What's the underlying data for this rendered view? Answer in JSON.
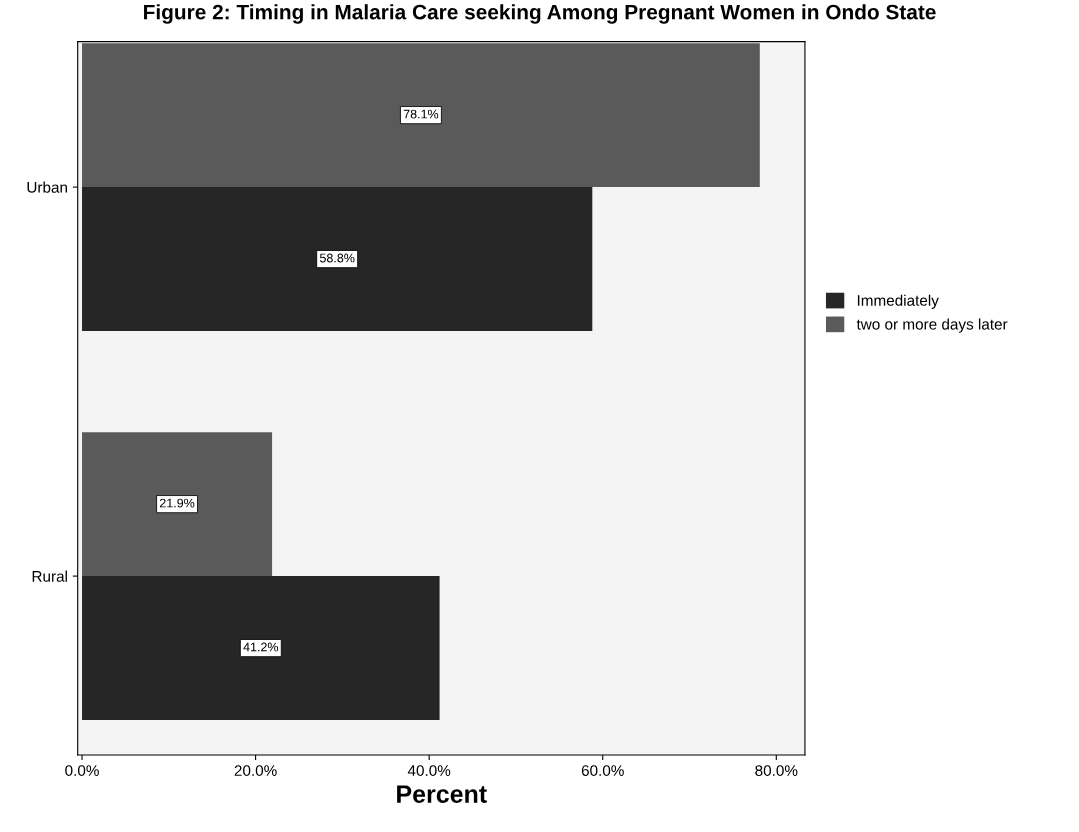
{
  "chart_data": {
    "type": "bar",
    "orientation": "horizontal",
    "title": "Figure 2: Timing in Malaria Care seeking Among Pregnant Women in Ondo State",
    "xlabel": "Percent",
    "categories": [
      "Urban",
      "Rural"
    ],
    "series": [
      {
        "name": "Immediately",
        "color": "#262626",
        "values": [
          58.8,
          41.2
        ],
        "value_labels": [
          "58.8%",
          "41.2%"
        ]
      },
      {
        "name": "two or more days later",
        "color": "#5a5a5a",
        "values": [
          78.1,
          21.9
        ],
        "value_labels": [
          "78.1%",
          "21.9%"
        ]
      }
    ],
    "xlim": [
      -0.5,
      83.3
    ],
    "xticks": [
      {
        "value": 0,
        "label": "0.0%"
      },
      {
        "value": 20,
        "label": "20.0%"
      },
      {
        "value": 40,
        "label": "40.0%"
      },
      {
        "value": 60,
        "label": "60.0%"
      },
      {
        "value": 80,
        "label": "80.0%"
      }
    ],
    "legend": "right",
    "grid": false
  }
}
